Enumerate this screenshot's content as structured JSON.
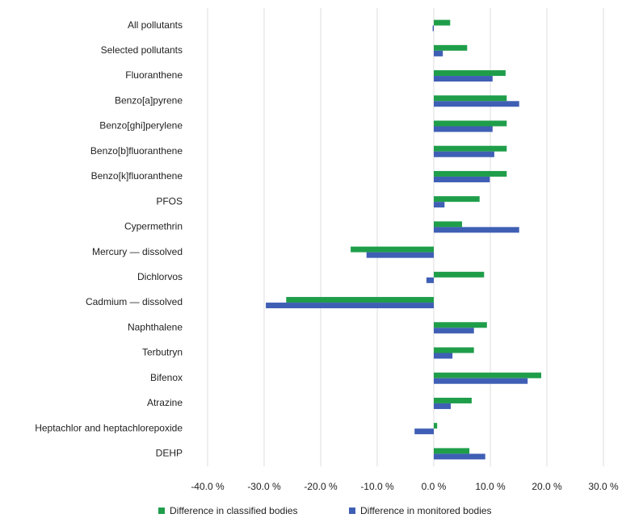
{
  "chart_data": {
    "type": "hbar",
    "categories": [
      "All pollutants",
      "Selected pollutants",
      "Fluoranthene",
      "Benzo[a]pyrene",
      "Benzo[ghi]perylene",
      "Benzo[b]fluoranthene",
      "Benzo[k]fluoranthene",
      "PFOS",
      "Cypermethrin",
      "Mercury — dissolved",
      "Dichlorvos",
      "Cadmium — dissolved",
      "Naphthalene",
      "Terbutryn",
      "Bifenox",
      "Atrazine",
      "Heptachlor and heptachlorepoxide",
      "DEHP"
    ],
    "series": [
      {
        "name": "Difference in classified bodies",
        "color": "#1f9e4a",
        "values": [
          2.9,
          5.9,
          12.7,
          12.9,
          12.9,
          12.9,
          12.9,
          8.1,
          5.0,
          -14.7,
          8.9,
          -26.1,
          9.4,
          7.1,
          19.0,
          6.7,
          0.6,
          6.3
        ]
      },
      {
        "name": "Difference in monitored bodies",
        "color": "#3f5fb5",
        "values": [
          -0.2,
          1.6,
          10.4,
          15.1,
          10.4,
          10.7,
          9.9,
          1.9,
          15.1,
          -11.9,
          -1.3,
          -29.7,
          7.1,
          3.3,
          16.6,
          3.0,
          -3.4,
          9.1
        ]
      }
    ],
    "xlim": [
      -40,
      30
    ],
    "xticks": [
      {
        "value": -40,
        "label": "-40.0 %"
      },
      {
        "value": -30,
        "label": "-30.0 %"
      },
      {
        "value": -20,
        "label": "-20.0 %"
      },
      {
        "value": -10,
        "label": "-10.0 %"
      },
      {
        "value": 0,
        "label": "0.0 %"
      },
      {
        "value": 10,
        "label": "10.0 %"
      },
      {
        "value": 20,
        "label": "20.0 %"
      },
      {
        "value": 30,
        "label": "30.0 %"
      }
    ],
    "grid": true,
    "legend": "bottom"
  }
}
